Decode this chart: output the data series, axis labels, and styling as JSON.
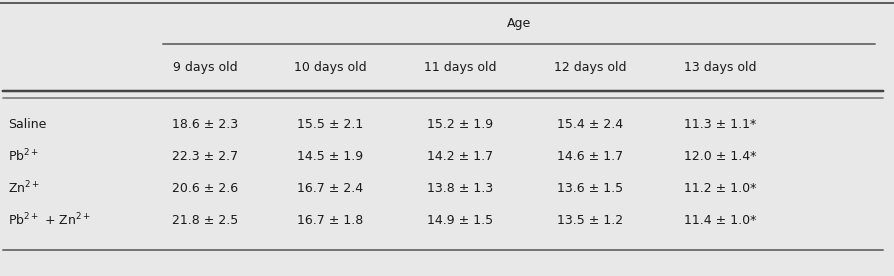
{
  "bg_color": "#e8e8e8",
  "age_header": "Age",
  "col_headers": [
    "9 days old",
    "10 days old",
    "11 days old",
    "12 days old",
    "13 days old"
  ],
  "row_labels": [
    "Saline",
    "Pb$^{2+}$",
    "Zn$^{2+}$",
    "Pb$^{2+}$ + Zn$^{2+}$"
  ],
  "data": [
    [
      "18.6 ± 2.3",
      "15.5 ± 2.1",
      "15.2 ± 1.9",
      "15.4 ± 2.4",
      "11.3 ± 1.1*"
    ],
    [
      "22.3 ± 2.7",
      "14.5 ± 1.9",
      "14.2 ± 1.7",
      "14.6 ± 1.7",
      "12.0 ± 1.4*"
    ],
    [
      "20.6 ± 2.6",
      "16.7 ± 2.4",
      "13.8 ± 1.3",
      "13.6 ± 1.5",
      "11.2 ± 1.0*"
    ],
    [
      "21.8 ± 2.5",
      "16.7 ± 1.8",
      "14.9 ± 1.5",
      "13.5 ± 1.2",
      "11.4 ± 1.0*"
    ]
  ],
  "font_size": 9.0,
  "text_color": "#1a1a1a",
  "line_color": "#444444",
  "fig_width": 8.94,
  "fig_height": 2.76,
  "dpi": 100
}
